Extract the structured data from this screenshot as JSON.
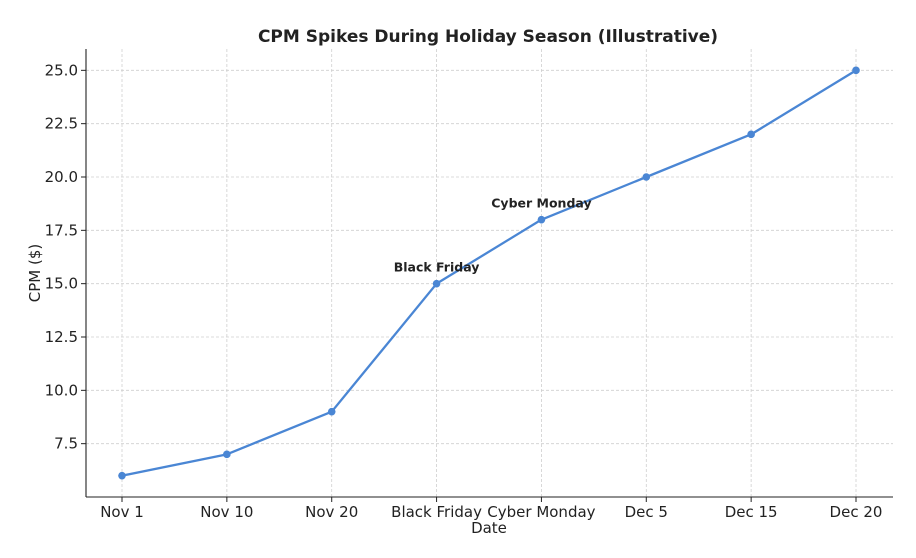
{
  "chart_data": {
    "type": "line",
    "title": "CPM Spikes During Holiday Season (Illustrative)",
    "xlabel": "Date",
    "ylabel": "CPM ($)",
    "categories": [
      "Nov 1",
      "Nov 10",
      "Nov 20",
      "Black Friday",
      "Cyber Monday",
      "Dec 5",
      "Dec 15",
      "Dec 20"
    ],
    "values": [
      6,
      7,
      9,
      15,
      18,
      20,
      22,
      25
    ],
    "ylim": [
      5,
      26
    ],
    "yticks": [
      "7.5",
      "10.0",
      "12.5",
      "15.0",
      "17.5",
      "20.0",
      "22.5",
      "25.0"
    ],
    "grid": true,
    "line_color": "#4a86d4",
    "annotations": [
      {
        "text": "Black Friday",
        "category": "Black Friday",
        "value": 15
      },
      {
        "text": "Cyber Monday",
        "category": "Cyber Monday",
        "value": 18
      }
    ]
  }
}
